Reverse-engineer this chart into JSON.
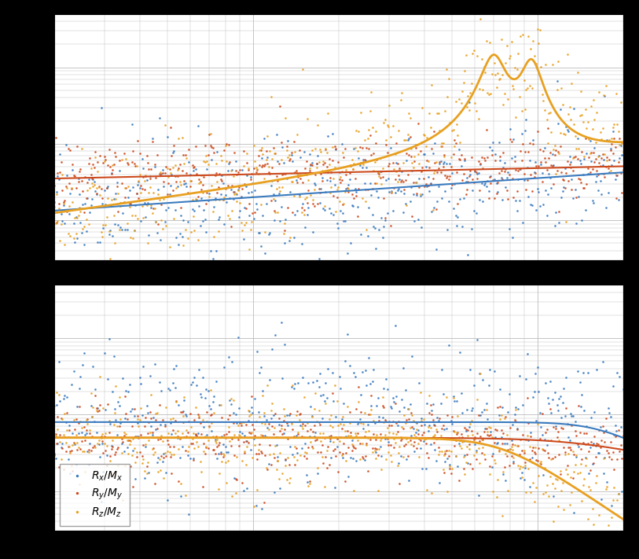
{
  "colors": {
    "blue": "#3B7BBF",
    "red": "#CC4A1D",
    "gold": "#E8A020"
  },
  "figsize": [
    8.13,
    7.11
  ],
  "dpi": 100,
  "gap_color": "#000000",
  "background_color": "#ffffff",
  "grid_color": "#bbbbbb"
}
